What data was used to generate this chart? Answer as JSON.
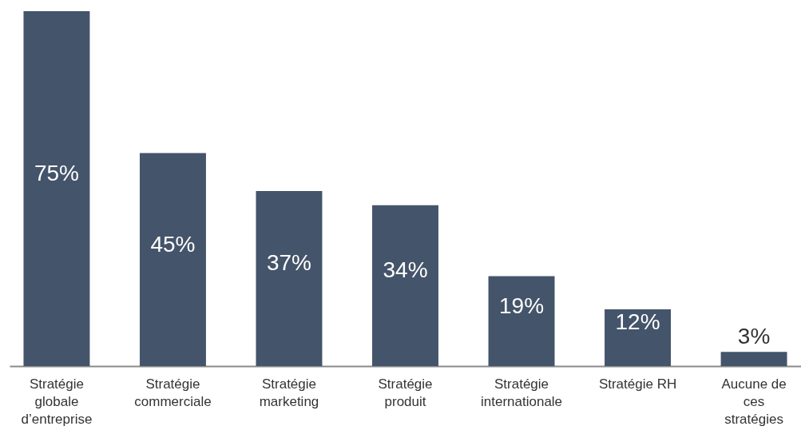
{
  "chart_data": {
    "type": "bar",
    "categories": [
      "Stratégie globale d’entreprise",
      "Stratégie commerciale",
      "Stratégie marketing",
      "Stratégie produit",
      "Stratégie internationale",
      "Stratégie RH",
      "Aucune de ces stratégies"
    ],
    "values": [
      75,
      45,
      37,
      34,
      19,
      12,
      3
    ],
    "value_labels": [
      "75%",
      "45%",
      "37%",
      "34%",
      "19%",
      "12%",
      "3%"
    ],
    "color": "#44546a"
  }
}
